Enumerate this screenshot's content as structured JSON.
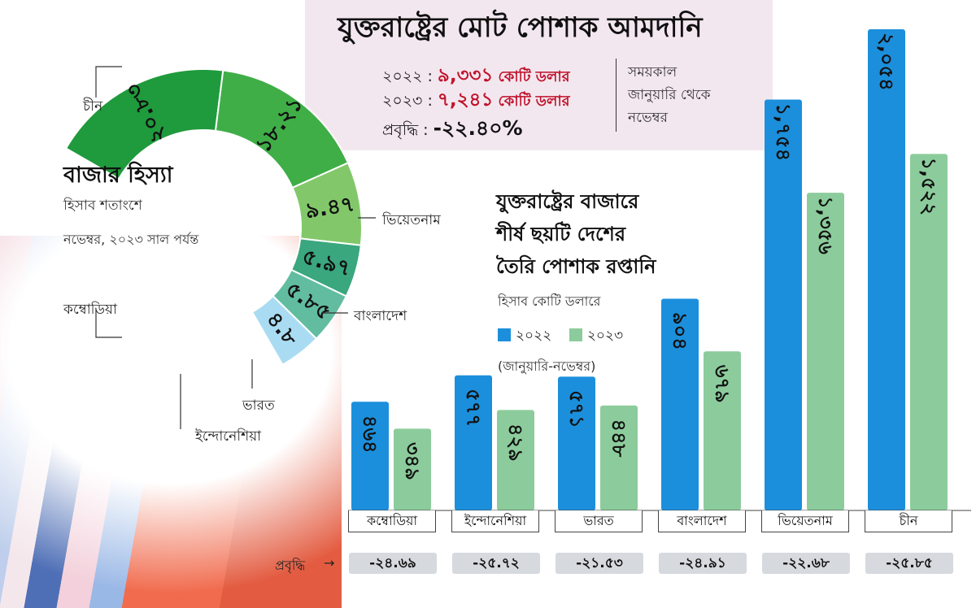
{
  "header": {
    "title": "যুক্তরাষ্ট্রের মোট পোশাক আমদানি",
    "rows": [
      {
        "year": "২০২২ :",
        "value": "৯,৩৩১",
        "unit": "কোটি ডলার"
      },
      {
        "year": "২০২৩ :",
        "value": "৭,২৪১",
        "unit": "কোটি ডলার"
      }
    ],
    "growth_label": "প্রবৃদ্ধি :",
    "growth_value": "-২২.৪০%",
    "period": [
      "সময়কাল",
      "জানুয়ারি থেকে",
      "নভেম্বর"
    ]
  },
  "share": {
    "title": "বাজার হিস্যা",
    "subtitle": "হিসাব শতাংশে",
    "note": "নভেম্বর, ২০২৩ সাল পর্যন্ত"
  },
  "bar_section": {
    "title_lines": [
      "যুক্তরাষ্ট্রের বাজারে",
      "শীর্ষ ছয়টি দেশের",
      "তৈরি পোশাক রপ্তানি"
    ],
    "unit": "হিসাব কোটি ডলারে",
    "legend": [
      "২০২২",
      "২০২৩"
    ],
    "period": "(জানুয়ারি-নভেম্বর)",
    "growth_label": "প্রবৃদ্ধি",
    "growth_arrow": "→"
  },
  "colors": {
    "bar_2022": "#1c8fdc",
    "bar_2023": "#8ccc9c",
    "pie": [
      "#1f9a3c",
      "#3fae47",
      "#82c86a",
      "#3aa77e",
      "#62bda0",
      "#a9dcf2"
    ]
  },
  "chart_data": [
    {
      "type": "pie",
      "title": "বাজার হিস্যা",
      "slices": [
        {
          "label": "চীন",
          "value": 20.83,
          "text": "২০.৮৩"
        },
        {
          "label": "ভিয়েতনাম",
          "value": 18.21,
          "text": "১৮.২১"
        },
        {
          "label": "বাংলাদেশ",
          "value": 9.47,
          "text": "৯.৪৭"
        },
        {
          "label": "ভারত",
          "value": 5.97,
          "text": "৫.৯৭"
        },
        {
          "label": "ইন্দোনেশিয়া",
          "value": 5.85,
          "text": "৫.৮৫"
        },
        {
          "label": "কম্বোডিয়া",
          "value": 4.8,
          "text": "৪.৮"
        }
      ]
    },
    {
      "type": "bar",
      "categories": [
        "কম্বোডিয়া",
        "ইন্দোনেশিয়া",
        "ভারত",
        "বাংলাদেশ",
        "ভিয়েতনাম",
        "চীন"
      ],
      "series": [
        {
          "name": "২০২২",
          "values": [
            464,
            577,
            571,
            904,
            1754,
            2054
          ],
          "labels": [
            "৪৬৪",
            "৫৭৭",
            "৫৭১",
            "৯০৪",
            "১,৭৫৪",
            "২,০৫৪"
          ]
        },
        {
          "name": "২০২৩",
          "values": [
            349,
            429,
            448,
            679,
            1356,
            1522
          ],
          "labels": [
            "৩৪৯",
            "৪২৯",
            "৪৪৮",
            "৬৭৯",
            "১,৩৫৬",
            "১,৫২২"
          ]
        }
      ],
      "growth": [
        "-২৪.৬৯",
        "-২৫.৭২",
        "-২১.৫৩",
        "-২৪.৯১",
        "-২২.৬৮",
        "-২৫.৮৫"
      ],
      "ylim": [
        0,
        2054
      ]
    }
  ]
}
